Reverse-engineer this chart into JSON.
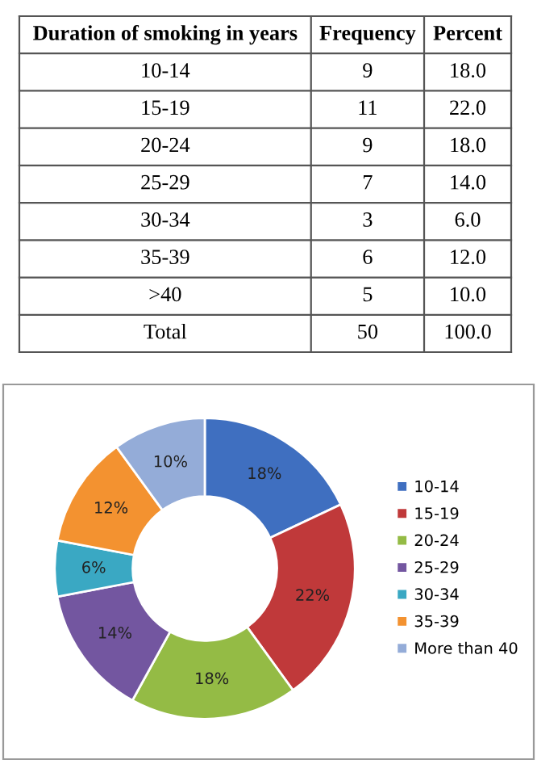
{
  "chart_data": [
    {
      "type": "other",
      "annotations": [
        "Duration of smoking in years",
        "Frequency",
        "Percent",
        "10-14",
        "9",
        "18.0",
        "15-19",
        "11",
        "22.0",
        "20-24",
        "9",
        "18.0",
        "25-29",
        "7",
        "14.0",
        "30-34",
        "3",
        "6.0",
        "35-39",
        "6",
        "12.0",
        ">40",
        "5",
        "10.0",
        "Total",
        "50",
        "100.0"
      ]
    },
    {
      "type": "donut",
      "categories": [
        "10-14",
        "15-19",
        "20-24",
        "25-29",
        "30-34",
        "35-39",
        "More than 40"
      ],
      "values": [
        18,
        22,
        18,
        14,
        6,
        12,
        10
      ],
      "value_labels": [
        "18%",
        "22%",
        "18%",
        "14%",
        "6%",
        "12%",
        "10%"
      ],
      "colors": [
        "#3f6fc0",
        "#c0393a",
        "#94bb45",
        "#7356a0",
        "#3aa8c3",
        "#f39230",
        "#94acd8"
      ],
      "legend": "right"
    }
  ]
}
